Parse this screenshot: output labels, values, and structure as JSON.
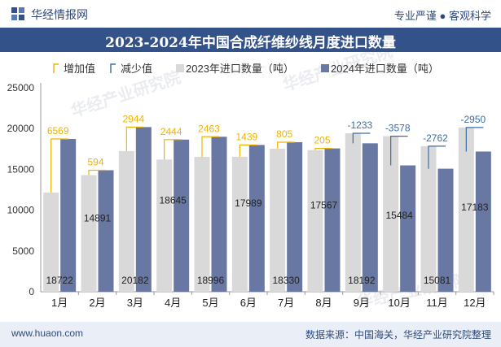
{
  "header": {
    "brand": "华经情报网",
    "slogan": "专业严谨 ● 客观科学"
  },
  "footer": {
    "url": "www.huaon.com",
    "source": "数据来源：中国海关，华经产业研究院整理"
  },
  "watermark": "华经产业研究院",
  "colors": {
    "bar2023": "#d9d9d9",
    "bar2024": "#6878a3",
    "increase": "#f0b400",
    "decrease": "#3a6ea5",
    "titlebar": "#34528a"
  },
  "chart_data": {
    "type": "bar",
    "title": "2023-2024年中国合成纤维纱线月度进口数量",
    "categories": [
      "1月",
      "2月",
      "3月",
      "4月",
      "5月",
      "6月",
      "7月",
      "8月",
      "9月",
      "10月",
      "11月",
      "12月"
    ],
    "series": [
      {
        "name": "2023年进口数量（吨）",
        "values": [
          12153,
          14297,
          17238,
          16201,
          16533,
          16550,
          17525,
          17362,
          19425,
          19062,
          17843,
          20133
        ]
      },
      {
        "name": "2024年进口数量（吨）",
        "values": [
          18722,
          14891,
          20182,
          18645,
          18996,
          17989,
          18330,
          17567,
          18192,
          15484,
          15081,
          17183
        ]
      }
    ],
    "value_labels": [
      "18722",
      "14891",
      "20182",
      "18645",
      "18996",
      "17989",
      "18330",
      "17567",
      "18192",
      "15484",
      "15081",
      "17183"
    ],
    "changes": [
      6569,
      594,
      2944,
      2444,
      2463,
      1439,
      805,
      205,
      -1233,
      -3578,
      -2762,
      -2950
    ],
    "change_labels": [
      "6569",
      "594",
      "2944",
      "2444",
      "2463",
      "1439",
      "805",
      "205",
      "-1233",
      "-3578",
      "-2762",
      "-2950"
    ],
    "legend": [
      "增加值",
      "减少值",
      "2023年进口数量（吨）",
      "2024年进口数量（吨）"
    ],
    "legend_position": "top",
    "yticks": [
      "0",
      "5000",
      "10000",
      "15000",
      "20000",
      "25000"
    ],
    "ylim": [
      0,
      25000
    ],
    "grid": false
  }
}
